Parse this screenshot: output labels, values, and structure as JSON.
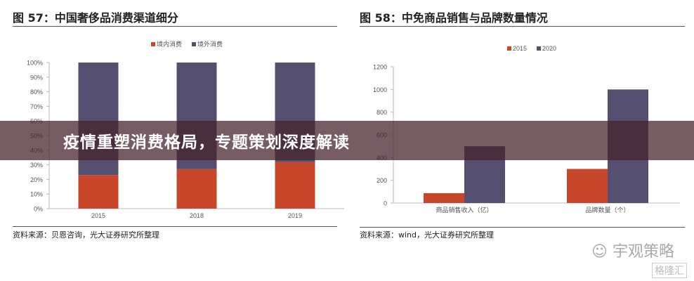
{
  "chart_data": [
    {
      "type": "bar",
      "stacked": true,
      "title": "图 57：中国奢侈品消费渠道细分",
      "categories": [
        "2015",
        "2018",
        "2019"
      ],
      "series": [
        {
          "name": "境内消费",
          "values": [
            23,
            27,
            32
          ],
          "color": "#c8462a"
        },
        {
          "name": "境外消费",
          "values": [
            77,
            73,
            68
          ],
          "color": "#544f6e"
        }
      ],
      "yticks": [
        "0%",
        "10%",
        "20%",
        "30%",
        "40%",
        "50%",
        "60%",
        "70%",
        "80%",
        "90%",
        "100%"
      ],
      "ylim": [
        0,
        100
      ],
      "legend": "top",
      "grid": false,
      "source": "资料来源：贝恩咨询，光大证券研究所整理"
    },
    {
      "type": "bar",
      "title": "图 58：中免商品销售与品牌数量情况",
      "categories": [
        "商品销售收入（亿）",
        "品牌数量（个）"
      ],
      "series": [
        {
          "name": "2015",
          "values": [
            87,
            300
          ],
          "color": "#c8462a"
        },
        {
          "name": "2020",
          "values": [
            500,
            1000
          ],
          "color": "#544f6e"
        }
      ],
      "yticks": [
        "0",
        "200",
        "400",
        "600",
        "800",
        "1000",
        "1200"
      ],
      "ylim": [
        0,
        1200
      ],
      "legend": "top",
      "grid": false,
      "source": "资料来源：wind，光大证券研究所整理"
    }
  ],
  "banner": {
    "text": "疫情重塑消费格局，专题策划深度解读"
  },
  "watermark": {
    "brand": "宇观策略",
    "site": "格隆汇"
  }
}
